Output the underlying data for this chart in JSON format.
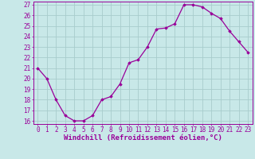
{
  "hours": [
    0,
    1,
    2,
    3,
    4,
    5,
    6,
    7,
    8,
    9,
    10,
    11,
    12,
    13,
    14,
    15,
    16,
    17,
    18,
    19,
    20,
    21,
    22,
    23
  ],
  "values": [
    21,
    20,
    18,
    16.5,
    16,
    16,
    16.5,
    18,
    18.3,
    19.5,
    21.5,
    21.8,
    23,
    24.7,
    24.8,
    25.2,
    27,
    27,
    26.8,
    26.2,
    25.7,
    24.5,
    23.5,
    22.5
  ],
  "line_color": "#990099",
  "marker": "D",
  "marker_size": 1.8,
  "bg_color": "#c8e8e8",
  "grid_color": "#a8cccc",
  "xlabel": "Windchill (Refroidissement éolien,°C)",
  "xlim": [
    -0.5,
    23.5
  ],
  "ylim": [
    15.7,
    27.3
  ],
  "yticks": [
    16,
    17,
    18,
    19,
    20,
    21,
    22,
    23,
    24,
    25,
    26,
    27
  ],
  "xticks": [
    0,
    1,
    2,
    3,
    4,
    5,
    6,
    7,
    8,
    9,
    10,
    11,
    12,
    13,
    14,
    15,
    16,
    17,
    18,
    19,
    20,
    21,
    22,
    23
  ],
  "tick_label_fontsize": 5.5,
  "xlabel_fontsize": 6.5,
  "tick_color": "#990099",
  "label_color": "#990099",
  "spine_color": "#990099"
}
